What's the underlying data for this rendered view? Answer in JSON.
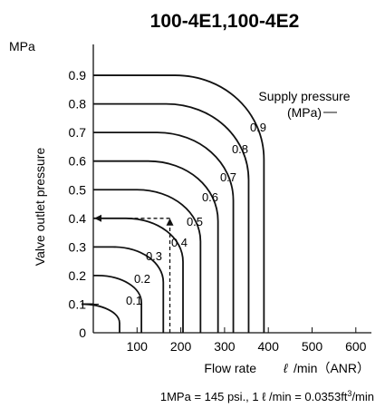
{
  "chart_data": {
    "type": "line",
    "title": "100-4E1,100-4E2",
    "xlabel": "Flow rate",
    "xunit_prefix": "ℓ",
    "xunit_suffix": "/min（ANR）",
    "ylabel": "Valve outlet pressure",
    "yunit": "MPa",
    "xlim": [
      0,
      650
    ],
    "ylim": [
      0,
      0.95
    ],
    "x_ticks": [
      100,
      200,
      300,
      400,
      500,
      600
    ],
    "y_ticks": [
      0,
      0.1,
      0.2,
      0.3,
      0.4,
      0.5,
      0.6,
      0.7,
      0.8,
      0.9
    ],
    "legend_title_line1": "Supply pressure",
    "legend_title_line2": "(MPa)",
    "footnote_main": "1MPa = 145 psi., 1 ℓ /min = 0.0353ft",
    "footnote_sup": "3",
    "footnote_tail": "/min",
    "series": [
      {
        "name": "0.1",
        "p": 0.1,
        "flow_max": 60
      },
      {
        "name": "0.2",
        "p": 0.2,
        "flow_max": 110
      },
      {
        "name": "0.3",
        "p": 0.3,
        "flow_max": 160
      },
      {
        "name": "0.4",
        "p": 0.4,
        "flow_max": 205
      },
      {
        "name": "0.5",
        "p": 0.5,
        "flow_max": 245
      },
      {
        "name": "0.6",
        "p": 0.6,
        "flow_max": 285
      },
      {
        "name": "0.7",
        "p": 0.7,
        "flow_max": 320
      },
      {
        "name": "0.8",
        "p": 0.8,
        "flow_max": 355
      },
      {
        "name": "0.9",
        "p": 0.9,
        "flow_max": 390
      }
    ],
    "example_guide": {
      "flow": 175,
      "pressure": 0.4
    },
    "colors": {
      "curve": "#111111",
      "axis": "#111111",
      "guide": "#111111"
    }
  }
}
